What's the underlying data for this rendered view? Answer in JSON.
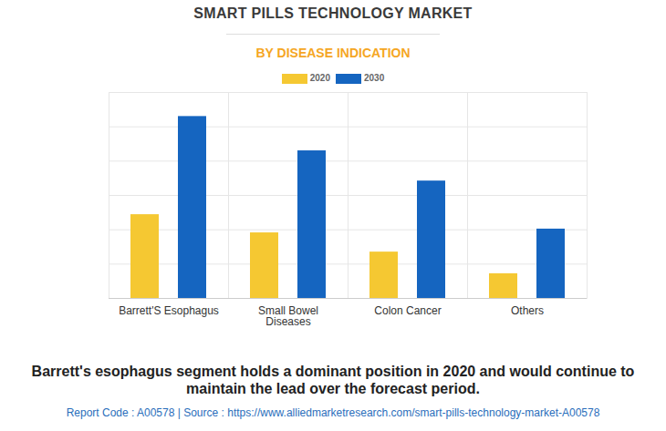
{
  "chart_data": {
    "type": "bar",
    "title": "SMART PILLS TECHNOLOGY MARKET",
    "subtitle": "BY DISEASE INDICATION",
    "categories": [
      "Barrett'S Esophagus",
      "Small Bowel Diseases",
      "Colon Cancer",
      "Others"
    ],
    "series": [
      {
        "name": "2020",
        "color": "#f5c832",
        "values": [
          2.44,
          1.91,
          1.35,
          0.72
        ]
      },
      {
        "name": "2030",
        "color": "#1565c0",
        "values": [
          5.3,
          4.3,
          3.42,
          2.02
        ]
      }
    ],
    "ylim": [
      0,
      6
    ],
    "yticks": [
      0,
      1,
      2,
      3,
      4,
      5,
      6
    ],
    "grid": true,
    "tick_labels": "x",
    "legend": "top",
    "caption": "Barrett's esophagus segment holds a dominant position in 2020 and would continue to maintain the lead over the forecast period.",
    "source": "Report Code : A00578  |  Source : https://www.alliedmarketresearch.com/smart-pills-technology-market-A00578"
  }
}
